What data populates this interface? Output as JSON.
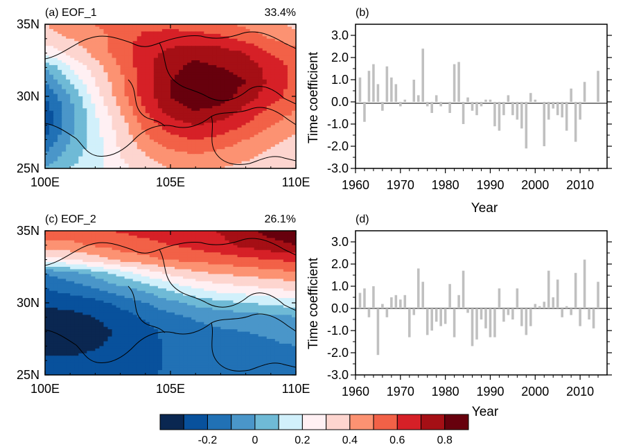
{
  "colors": {
    "levels": [
      "#0a2751",
      "#08519c",
      "#2171b5",
      "#4a96c9",
      "#6fbad6",
      "#d1f0fb",
      "#fff0f3",
      "#fdd5cf",
      "#fc9272",
      "#f26147",
      "#d62027",
      "#a50f15",
      "#67000d"
    ],
    "bars": "#c0c0c0",
    "border": "#000000"
  },
  "colorbar": {
    "tick_labels": [
      "-0.2",
      "0",
      "0.2",
      "0.4",
      "0.6",
      "0.8"
    ]
  },
  "chart_data": [
    {
      "type": "heatmap",
      "panel_label": "(a) EOF_1",
      "variance_label": "33.4%",
      "xlim": [
        100,
        110
      ],
      "ylim": [
        25,
        35
      ],
      "xticks": [
        100,
        105,
        110
      ],
      "xtick_labels": [
        "100E",
        "105E",
        "110E"
      ],
      "yticks": [
        25,
        30,
        35
      ],
      "ytick_labels": [
        "25N",
        "30N",
        "35N"
      ],
      "x": [
        100,
        101,
        102,
        103,
        104,
        105,
        106,
        107,
        108,
        109,
        110
      ],
      "y": [
        35,
        34,
        33,
        32,
        31,
        30,
        29,
        28,
        27,
        26,
        25
      ],
      "z": [
        [
          0.45,
          0.5,
          0.55,
          0.6,
          0.62,
          0.62,
          0.6,
          0.58,
          0.52,
          0.48,
          0.42
        ],
        [
          0.4,
          0.45,
          0.5,
          0.6,
          0.68,
          0.7,
          0.7,
          0.68,
          0.62,
          0.55,
          0.5
        ],
        [
          0.28,
          0.38,
          0.48,
          0.6,
          0.72,
          0.78,
          0.82,
          0.8,
          0.75,
          0.65,
          0.58
        ],
        [
          0.05,
          0.25,
          0.4,
          0.55,
          0.72,
          0.82,
          0.88,
          0.85,
          0.8,
          0.72,
          0.62
        ],
        [
          -0.05,
          0.15,
          0.35,
          0.52,
          0.7,
          0.85,
          0.92,
          0.92,
          0.85,
          0.72,
          0.62
        ],
        [
          -0.15,
          0.05,
          0.3,
          0.5,
          0.7,
          0.85,
          0.92,
          0.9,
          0.8,
          0.7,
          0.6
        ],
        [
          -0.2,
          0.0,
          0.25,
          0.45,
          0.65,
          0.8,
          0.85,
          0.82,
          0.72,
          0.62,
          0.55
        ],
        [
          -0.2,
          0.0,
          0.22,
          0.4,
          0.58,
          0.7,
          0.75,
          0.72,
          0.65,
          0.55,
          0.48
        ],
        [
          -0.15,
          0.05,
          0.2,
          0.38,
          0.52,
          0.62,
          0.65,
          0.62,
          0.55,
          0.48,
          0.42
        ],
        [
          -0.05,
          0.1,
          0.2,
          0.35,
          0.45,
          0.52,
          0.55,
          0.52,
          0.48,
          0.42,
          0.38
        ],
        [
          0.05,
          0.15,
          0.22,
          0.32,
          0.4,
          0.45,
          0.48,
          0.45,
          0.42,
          0.38,
          0.35
        ]
      ]
    },
    {
      "type": "bar",
      "panel_label": "(b)",
      "xlabel": "Year",
      "ylabel": "Time coefficient",
      "xlim": [
        1960,
        2016
      ],
      "ylim": [
        -3,
        3.5
      ],
      "xticks": [
        1960,
        1970,
        1980,
        1990,
        2000,
        2010
      ],
      "yticks": [
        -3,
        -2,
        -1,
        0,
        1,
        2,
        3
      ],
      "ytick_labels": [
        "-3.0",
        "-2.0",
        "-1.0",
        "0.0",
        "1.0",
        "2.0",
        "3.0"
      ],
      "x": [
        1961,
        1962,
        1963,
        1964,
        1965,
        1966,
        1967,
        1968,
        1969,
        1970,
        1971,
        1972,
        1973,
        1974,
        1975,
        1976,
        1977,
        1978,
        1979,
        1980,
        1981,
        1982,
        1983,
        1984,
        1985,
        1986,
        1987,
        1988,
        1989,
        1990,
        1991,
        1992,
        1993,
        1994,
        1995,
        1996,
        1997,
        1998,
        1999,
        2000,
        2001,
        2002,
        2003,
        2004,
        2005,
        2006,
        2007,
        2008,
        2009,
        2010,
        2011,
        2012,
        2013,
        2014
      ],
      "values": [
        1.1,
        -0.9,
        1.4,
        1.7,
        0.8,
        -0.4,
        1.6,
        1.1,
        0.8,
        -0.2,
        0.1,
        0.0,
        1.0,
        0.3,
        2.4,
        -0.2,
        -0.5,
        0.3,
        -0.2,
        0.0,
        -0.5,
        1.7,
        1.8,
        -1.0,
        0.2,
        -0.4,
        -0.6,
        -0.2,
        0.1,
        0.1,
        -1.1,
        -1.3,
        -0.6,
        0.3,
        -0.6,
        -0.8,
        -1.2,
        -2.1,
        0.4,
        0.1,
        0.0,
        -2.0,
        -0.8,
        -0.3,
        -0.6,
        -0.7,
        -1.3,
        0.6,
        -1.8,
        -0.8,
        0.9,
        0.0,
        0.0,
        1.4
      ]
    },
    {
      "type": "heatmap",
      "panel_label": "(c) EOF_2",
      "variance_label": "26.1%",
      "xlim": [
        100,
        110
      ],
      "ylim": [
        25,
        35
      ],
      "xticks": [
        100,
        105,
        110
      ],
      "xtick_labels": [
        "100E",
        "105E",
        "110E"
      ],
      "yticks": [
        25,
        30,
        35
      ],
      "ytick_labels": [
        "25N",
        "30N",
        "35N"
      ],
      "x": [
        100,
        101,
        102,
        103,
        104,
        105,
        106,
        107,
        108,
        109,
        110
      ],
      "y": [
        35,
        34,
        33,
        32,
        31,
        30,
        29,
        28,
        27,
        26,
        25
      ],
      "z": [
        [
          0.62,
          0.62,
          0.64,
          0.66,
          0.68,
          0.7,
          0.72,
          0.76,
          0.82,
          0.88,
          0.9
        ],
        [
          0.5,
          0.52,
          0.56,
          0.6,
          0.62,
          0.65,
          0.68,
          0.72,
          0.78,
          0.82,
          0.85
        ],
        [
          0.3,
          0.35,
          0.4,
          0.48,
          0.52,
          0.56,
          0.58,
          0.6,
          0.62,
          0.65,
          0.68
        ],
        [
          -0.05,
          0.0,
          0.08,
          0.18,
          0.28,
          0.36,
          0.42,
          0.45,
          0.48,
          0.5,
          0.52
        ],
        [
          -0.15,
          -0.1,
          -0.05,
          0.02,
          0.08,
          0.18,
          0.25,
          0.3,
          0.32,
          0.35,
          0.38
        ],
        [
          -0.24,
          -0.22,
          -0.18,
          -0.12,
          -0.05,
          0.02,
          0.08,
          0.12,
          0.15,
          0.18,
          0.2
        ],
        [
          -0.28,
          -0.28,
          -0.25,
          -0.2,
          -0.14,
          -0.08,
          -0.04,
          -0.02,
          0.0,
          0.02,
          0.04
        ],
        [
          -0.3,
          -0.3,
          -0.28,
          -0.24,
          -0.18,
          -0.12,
          -0.08,
          -0.06,
          -0.05,
          -0.04,
          -0.02
        ],
        [
          -0.28,
          -0.28,
          -0.26,
          -0.22,
          -0.18,
          -0.14,
          -0.1,
          -0.08,
          -0.07,
          -0.06,
          -0.05
        ],
        [
          -0.24,
          -0.24,
          -0.22,
          -0.2,
          -0.17,
          -0.14,
          -0.12,
          -0.1,
          -0.09,
          -0.08,
          -0.07
        ],
        [
          -0.2,
          -0.2,
          -0.19,
          -0.18,
          -0.16,
          -0.14,
          -0.12,
          -0.11,
          -0.1,
          -0.09,
          -0.08
        ]
      ]
    },
    {
      "type": "bar",
      "panel_label": "(d)",
      "xlabel": "Year",
      "ylabel": "Time coefficient",
      "xlim": [
        1960,
        2016
      ],
      "ylim": [
        -3,
        3.5
      ],
      "xticks": [
        1960,
        1970,
        1980,
        1990,
        2000,
        2010
      ],
      "yticks": [
        -3,
        -2,
        -1,
        0,
        1,
        2,
        3
      ],
      "ytick_labels": [
        "-3.0",
        "-2.0",
        "-1.0",
        "0.0",
        "1.0",
        "2.0",
        "3.0"
      ],
      "x": [
        1961,
        1962,
        1963,
        1964,
        1965,
        1966,
        1967,
        1968,
        1969,
        1970,
        1971,
        1972,
        1973,
        1974,
        1975,
        1976,
        1977,
        1978,
        1979,
        1980,
        1981,
        1982,
        1983,
        1984,
        1985,
        1986,
        1987,
        1988,
        1989,
        1990,
        1991,
        1992,
        1993,
        1994,
        1995,
        1996,
        1997,
        1998,
        1999,
        2000,
        2001,
        2002,
        2003,
        2004,
        2005,
        2006,
        2007,
        2008,
        2009,
        2010,
        2011,
        2012,
        2013,
        2014
      ],
      "values": [
        0.7,
        0.9,
        -0.4,
        1.0,
        -2.1,
        0.2,
        -0.4,
        0.5,
        0.6,
        0.4,
        0.6,
        -1.3,
        -0.3,
        1.8,
        1.2,
        -1.2,
        -1.0,
        -0.6,
        -0.8,
        -0.7,
        1.1,
        -1.3,
        0.6,
        1.7,
        -0.2,
        -1.7,
        -1.4,
        -0.5,
        -0.9,
        -1.3,
        -1.3,
        0.9,
        -0.6,
        -0.3,
        -0.5,
        0.9,
        -0.8,
        -1.2,
        -0.8,
        0.2,
        0.1,
        0.3,
        1.7,
        0.5,
        1.3,
        -0.4,
        0.1,
        -0.3,
        1.6,
        -0.8,
        2.2,
        -0.5,
        -0.9,
        1.2
      ]
    }
  ]
}
